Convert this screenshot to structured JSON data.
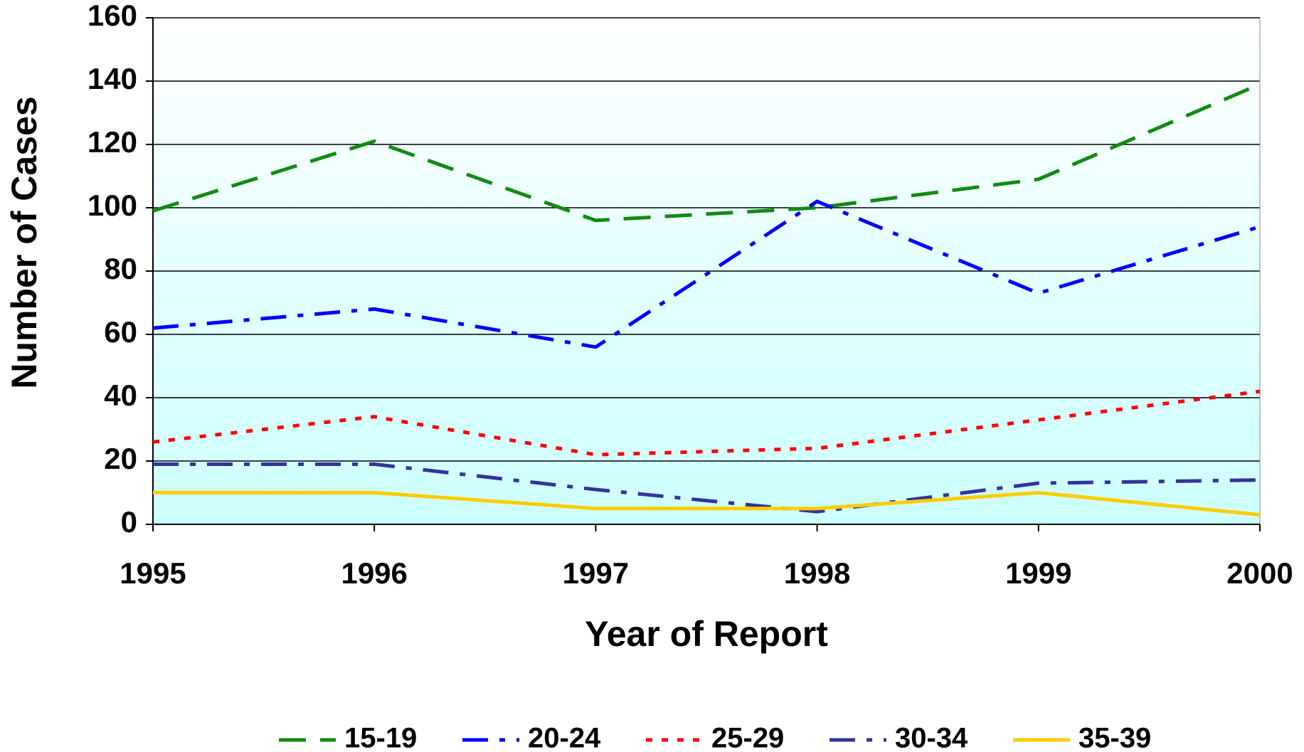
{
  "chart_data": {
    "type": "line",
    "x_label": "Year of Report",
    "y_label": "Number of Cases",
    "x": [
      1995,
      1996,
      1997,
      1998,
      1999,
      2000
    ],
    "xlim": [
      1995,
      2000
    ],
    "xticks": [
      1995,
      1996,
      1997,
      1998,
      1999,
      2000
    ],
    "ylim": [
      0,
      160
    ],
    "yticks": [
      0,
      20,
      40,
      60,
      80,
      100,
      120,
      140,
      160
    ],
    "grid": true,
    "legend": "bottom",
    "series": [
      {
        "name": "15-19",
        "color": "#138a13",
        "dash": "dashed",
        "values": [
          99,
          121,
          96,
          100,
          109,
          139
        ]
      },
      {
        "name": "20-24",
        "color": "#0000ff",
        "dash": "dashdot",
        "values": [
          62,
          68,
          56,
          102,
          73,
          94
        ]
      },
      {
        "name": "25-29",
        "color": "#ff0000",
        "dash": "dotted",
        "values": [
          26,
          34,
          22,
          24,
          33,
          42
        ]
      },
      {
        "name": "30-34",
        "color": "#333399",
        "dash": "dashdot",
        "values": [
          19,
          19,
          11,
          4,
          13,
          14
        ]
      },
      {
        "name": "35-39",
        "color": "#ffcc00",
        "dash": "solid",
        "values": [
          10,
          10,
          5,
          5,
          10,
          3
        ]
      }
    ]
  }
}
